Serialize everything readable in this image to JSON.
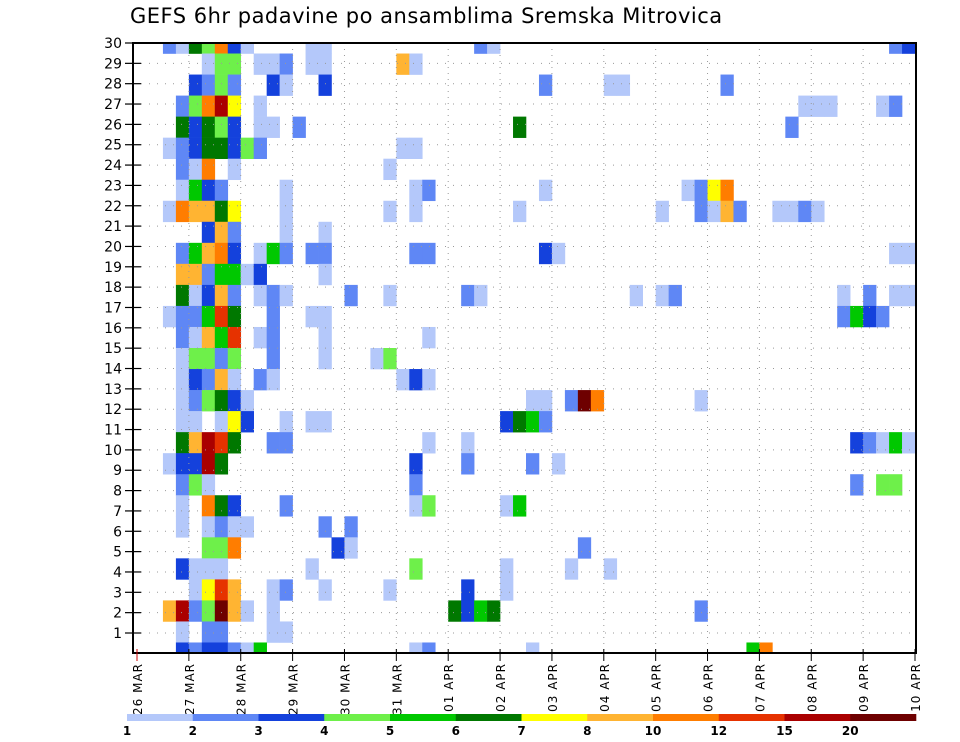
{
  "chart_data": {
    "type": "heatmap",
    "title": "GEFS 6hr padavine po ansamblima Sremska Mitrovica",
    "xlabel": "",
    "ylabel": "",
    "y_ticks": [
      "1",
      "2",
      "3",
      "4",
      "5",
      "6",
      "7",
      "8",
      "9",
      "10",
      "11",
      "12",
      "13",
      "14",
      "15",
      "16",
      "17",
      "18",
      "19",
      "20",
      "21",
      "22",
      "23",
      "24",
      "25",
      "26",
      "27",
      "28",
      "29",
      "30"
    ],
    "x_ticks": [
      "26 MAR",
      "27 MAR",
      "28 MAR",
      "29 MAR",
      "30 MAR",
      "31 MAR",
      "01 APR",
      "02 APR",
      "03 APR",
      "04 APR",
      "05 APR",
      "06 APR",
      "07 APR",
      "08 APR",
      "09 APR",
      "10 APR"
    ],
    "time_step_hours": 6,
    "steps_per_day": 4,
    "n_steps": 60,
    "colorbar": {
      "boundaries": [
        "1",
        "2",
        "3",
        "4",
        "5",
        "6",
        "7",
        "8",
        "10",
        "12",
        "15",
        "20"
      ],
      "colors": [
        "#b4c8fa",
        "#5f87f5",
        "#1441dc",
        "#6ef04a",
        "#00c800",
        "#007800",
        "#ffff00",
        "#ffb432",
        "#ff7d00",
        "#e63200",
        "#aa0000",
        "#6e0000"
      ]
    },
    "grid": true,
    "rows_note": "rows listed top to bottom; each cell is [step_index, color_level 1-12]",
    "rows": [
      [
        [
          2,
          2
        ],
        [
          3,
          1
        ],
        [
          4,
          6
        ],
        [
          5,
          4
        ],
        [
          6,
          9
        ],
        [
          7,
          3
        ],
        [
          8,
          1
        ],
        [
          13,
          1
        ],
        [
          14,
          1
        ],
        [
          26,
          2
        ],
        [
          27,
          1
        ],
        [
          58,
          2
        ],
        [
          59,
          3
        ]
      ],
      [
        [
          5,
          1
        ],
        [
          6,
          4
        ],
        [
          7,
          4
        ],
        [
          9,
          1
        ],
        [
          10,
          1
        ],
        [
          11,
          2
        ],
        [
          13,
          1
        ],
        [
          14,
          1
        ],
        [
          20,
          8
        ],
        [
          21,
          1
        ]
      ],
      [
        [
          4,
          3
        ],
        [
          5,
          2
        ],
        [
          6,
          4
        ],
        [
          7,
          2
        ],
        [
          10,
          3
        ],
        [
          11,
          1
        ],
        [
          14,
          3
        ],
        [
          31,
          2
        ],
        [
          36,
          1
        ],
        [
          37,
          1
        ],
        [
          45,
          2
        ]
      ],
      [
        [
          3,
          2
        ],
        [
          4,
          4
        ],
        [
          5,
          9
        ],
        [
          6,
          11
        ],
        [
          7,
          7
        ],
        [
          9,
          1
        ],
        [
          51,
          1
        ],
        [
          52,
          1
        ],
        [
          53,
          1
        ],
        [
          57,
          1
        ],
        [
          58,
          2
        ]
      ],
      [
        [
          3,
          6
        ],
        [
          4,
          3
        ],
        [
          5,
          6
        ],
        [
          6,
          4
        ],
        [
          7,
          3
        ],
        [
          9,
          1
        ],
        [
          10,
          1
        ],
        [
          12,
          2
        ],
        [
          29,
          6
        ],
        [
          50,
          2
        ]
      ],
      [
        [
          2,
          1
        ],
        [
          3,
          2
        ],
        [
          4,
          3
        ],
        [
          5,
          6
        ],
        [
          6,
          6
        ],
        [
          7,
          3
        ],
        [
          8,
          4
        ],
        [
          9,
          2
        ],
        [
          20,
          1
        ],
        [
          21,
          1
        ]
      ],
      [
        [
          3,
          2
        ],
        [
          4,
          1
        ],
        [
          5,
          9
        ],
        [
          7,
          1
        ],
        [
          19,
          1
        ]
      ],
      [
        [
          3,
          1
        ],
        [
          4,
          5
        ],
        [
          5,
          3
        ],
        [
          6,
          2
        ],
        [
          11,
          1
        ],
        [
          21,
          1
        ],
        [
          22,
          2
        ],
        [
          31,
          1
        ],
        [
          42,
          1
        ],
        [
          43,
          2
        ],
        [
          44,
          7
        ],
        [
          45,
          9
        ]
      ],
      [
        [
          2,
          1
        ],
        [
          3,
          9
        ],
        [
          4,
          8
        ],
        [
          5,
          8
        ],
        [
          6,
          6
        ],
        [
          7,
          7
        ],
        [
          11,
          1
        ],
        [
          19,
          1
        ],
        [
          21,
          1
        ],
        [
          29,
          1
        ],
        [
          40,
          1
        ],
        [
          43,
          2
        ],
        [
          44,
          1
        ],
        [
          45,
          8
        ],
        [
          46,
          2
        ],
        [
          49,
          1
        ],
        [
          50,
          1
        ],
        [
          51,
          2
        ],
        [
          52,
          1
        ]
      ],
      [
        [
          5,
          3
        ],
        [
          6,
          8
        ],
        [
          7,
          2
        ],
        [
          11,
          1
        ],
        [
          14,
          1
        ]
      ],
      [
        [
          3,
          2
        ],
        [
          4,
          5
        ],
        [
          5,
          8
        ],
        [
          6,
          9
        ],
        [
          7,
          3
        ],
        [
          9,
          1
        ],
        [
          10,
          5
        ],
        [
          11,
          2
        ],
        [
          13,
          2
        ],
        [
          14,
          2
        ],
        [
          21,
          2
        ],
        [
          22,
          2
        ],
        [
          31,
          3
        ],
        [
          32,
          1
        ],
        [
          58,
          1
        ],
        [
          59,
          1
        ]
      ],
      [
        [
          3,
          8
        ],
        [
          4,
          8
        ],
        [
          5,
          2
        ],
        [
          6,
          5
        ],
        [
          7,
          5
        ],
        [
          8,
          1
        ],
        [
          9,
          3
        ],
        [
          14,
          1
        ]
      ],
      [
        [
          3,
          6
        ],
        [
          4,
          1
        ],
        [
          5,
          3
        ],
        [
          6,
          8
        ],
        [
          7,
          2
        ],
        [
          9,
          1
        ],
        [
          10,
          2
        ],
        [
          11,
          1
        ],
        [
          16,
          2
        ],
        [
          19,
          1
        ],
        [
          25,
          2
        ],
        [
          26,
          1
        ],
        [
          38,
          1
        ],
        [
          40,
          1
        ],
        [
          41,
          2
        ],
        [
          54,
          1
        ],
        [
          56,
          2
        ],
        [
          58,
          1
        ],
        [
          59,
          1
        ]
      ],
      [
        [
          2,
          1
        ],
        [
          3,
          2
        ],
        [
          4,
          2
        ],
        [
          5,
          5
        ],
        [
          6,
          10
        ],
        [
          7,
          6
        ],
        [
          10,
          2
        ],
        [
          13,
          1
        ],
        [
          14,
          1
        ],
        [
          54,
          2
        ],
        [
          55,
          5
        ],
        [
          56,
          3
        ],
        [
          57,
          2
        ]
      ],
      [
        [
          3,
          2
        ],
        [
          4,
          1
        ],
        [
          5,
          8
        ],
        [
          6,
          5
        ],
        [
          7,
          10
        ],
        [
          9,
          1
        ],
        [
          10,
          2
        ],
        [
          14,
          1
        ],
        [
          22,
          1
        ]
      ],
      [
        [
          3,
          1
        ],
        [
          4,
          4
        ],
        [
          5,
          4
        ],
        [
          6,
          2
        ],
        [
          7,
          4
        ],
        [
          10,
          2
        ],
        [
          14,
          1
        ],
        [
          18,
          1
        ],
        [
          19,
          4
        ]
      ],
      [
        [
          3,
          1
        ],
        [
          4,
          3
        ],
        [
          5,
          2
        ],
        [
          6,
          8
        ],
        [
          7,
          1
        ],
        [
          9,
          2
        ],
        [
          10,
          1
        ],
        [
          20,
          1
        ],
        [
          21,
          3
        ],
        [
          22,
          1
        ]
      ],
      [
        [
          3,
          1
        ],
        [
          4,
          2
        ],
        [
          5,
          4
        ],
        [
          6,
          6
        ],
        [
          7,
          3
        ],
        [
          8,
          1
        ],
        [
          30,
          1
        ],
        [
          31,
          1
        ],
        [
          33,
          2
        ],
        [
          34,
          12
        ],
        [
          35,
          9
        ],
        [
          43,
          1
        ]
      ],
      [
        [
          3,
          1
        ],
        [
          4,
          1
        ],
        [
          6,
          1
        ],
        [
          7,
          7
        ],
        [
          8,
          3
        ],
        [
          11,
          1
        ],
        [
          13,
          1
        ],
        [
          14,
          1
        ],
        [
          28,
          3
        ],
        [
          29,
          6
        ],
        [
          30,
          5
        ],
        [
          31,
          2
        ]
      ],
      [
        [
          3,
          6
        ],
        [
          4,
          8
        ],
        [
          5,
          11
        ],
        [
          6,
          10
        ],
        [
          7,
          6
        ],
        [
          10,
          2
        ],
        [
          11,
          2
        ],
        [
          22,
          1
        ],
        [
          25,
          1
        ],
        [
          55,
          3
        ],
        [
          56,
          2
        ],
        [
          57,
          1
        ],
        [
          58,
          5
        ],
        [
          59,
          1
        ]
      ],
      [
        [
          2,
          1
        ],
        [
          3,
          3
        ],
        [
          4,
          3
        ],
        [
          5,
          11
        ],
        [
          6,
          6
        ],
        [
          21,
          3
        ],
        [
          25,
          2
        ],
        [
          30,
          2
        ],
        [
          32,
          1
        ]
      ],
      [
        [
          3,
          2
        ],
        [
          4,
          4
        ],
        [
          5,
          1
        ],
        [
          21,
          2
        ],
        [
          55,
          2
        ],
        [
          57,
          4
        ],
        [
          58,
          4
        ]
      ],
      [
        [
          3,
          1
        ],
        [
          5,
          9
        ],
        [
          6,
          6
        ],
        [
          7,
          3
        ],
        [
          11,
          2
        ],
        [
          21,
          1
        ],
        [
          22,
          4
        ],
        [
          28,
          1
        ],
        [
          29,
          5
        ]
      ],
      [
        [
          3,
          1
        ],
        [
          5,
          1
        ],
        [
          6,
          2
        ],
        [
          7,
          1
        ],
        [
          8,
          1
        ],
        [
          14,
          2
        ],
        [
          16,
          2
        ]
      ],
      [
        [
          5,
          4
        ],
        [
          6,
          4
        ],
        [
          7,
          9
        ],
        [
          15,
          3
        ],
        [
          16,
          1
        ],
        [
          34,
          2
        ]
      ],
      [
        [
          3,
          3
        ],
        [
          4,
          1
        ],
        [
          5,
          1
        ],
        [
          6,
          1
        ],
        [
          13,
          1
        ],
        [
          21,
          4
        ],
        [
          28,
          1
        ],
        [
          33,
          1
        ],
        [
          36,
          1
        ]
      ],
      [
        [
          4,
          1
        ],
        [
          5,
          7
        ],
        [
          6,
          10
        ],
        [
          7,
          8
        ],
        [
          10,
          1
        ],
        [
          11,
          2
        ],
        [
          14,
          1
        ],
        [
          19,
          1
        ],
        [
          25,
          3
        ],
        [
          28,
          1
        ]
      ],
      [
        [
          2,
          8
        ],
        [
          3,
          11
        ],
        [
          4,
          2
        ],
        [
          5,
          4
        ],
        [
          6,
          12
        ],
        [
          7,
          8
        ],
        [
          8,
          1
        ],
        [
          10,
          1
        ],
        [
          24,
          6
        ],
        [
          25,
          3
        ],
        [
          26,
          5
        ],
        [
          27,
          6
        ],
        [
          43,
          2
        ]
      ],
      [
        [
          3,
          1
        ],
        [
          5,
          2
        ],
        [
          6,
          2
        ],
        [
          10,
          1
        ],
        [
          11,
          1
        ]
      ],
      [
        [
          3,
          3
        ],
        [
          4,
          2
        ],
        [
          5,
          3
        ],
        [
          6,
          3
        ],
        [
          7,
          2
        ],
        [
          8,
          1
        ],
        [
          9,
          5
        ],
        [
          21,
          1
        ],
        [
          22,
          2
        ],
        [
          30,
          1
        ],
        [
          47,
          5
        ],
        [
          48,
          9
        ]
      ]
    ]
  }
}
